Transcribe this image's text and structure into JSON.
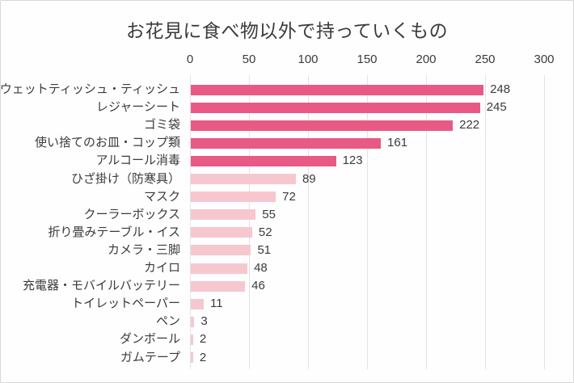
{
  "page": {
    "background": "#fefefe",
    "border_color": "#d7d7d7"
  },
  "chart_data": {
    "type": "bar",
    "orientation": "horizontal",
    "title": "お花見に食べ物以外で持っていくもの",
    "categories": [
      "ウェットティッシュ・ティッシュ",
      "レジャーシート",
      "ゴミ袋",
      "使い捨てのお皿・コップ類",
      "アルコール消毒",
      "ひざ掛け（防寒具）",
      "マスク",
      "クーラーボックス",
      "折り畳みテーブル・イス",
      "カメラ・三脚",
      "カイロ",
      "充電器・モバイルバッテリー",
      "トイレットペーパー",
      "ペン",
      "ダンボール",
      "ガムテープ"
    ],
    "values": [
      248,
      245,
      222,
      161,
      123,
      89,
      72,
      55,
      52,
      51,
      48,
      46,
      11,
      3,
      2,
      2
    ],
    "x_ticks": [
      0,
      50,
      100,
      150,
      200,
      250,
      300
    ],
    "xlim": [
      0,
      300
    ],
    "axis_position": "top",
    "grid": true,
    "value_labels_shown": true,
    "legend": "none",
    "primary_color_count": 5,
    "bar_color_primary": "#e85a85",
    "bar_color_secondary": "#f7c7cf",
    "grid_color": "#e3e3e3",
    "text_color": "#3b3b3b"
  }
}
